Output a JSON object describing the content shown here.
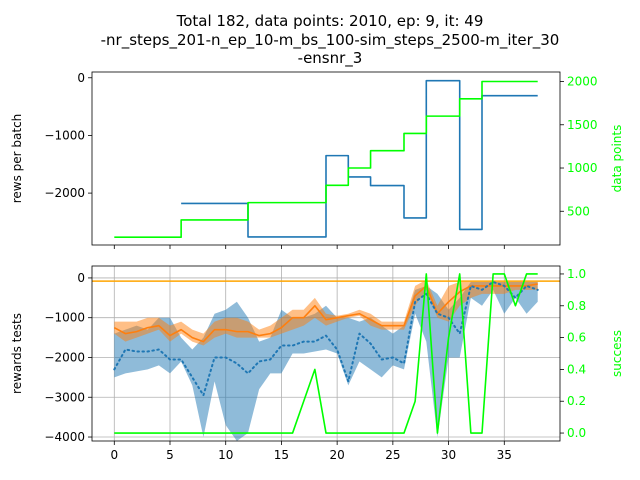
{
  "title": {
    "line1": "Total 182, data points: 2010, ep: 9, it: 49",
    "line2": "-nr_steps_201-n_ep_10-m_bs_100-sim_steps_2500-m_iter_30",
    "line3": "-ensnr_3"
  },
  "colors": {
    "blue": "#1f77b4",
    "orange": "#ff7f0e",
    "green": "#00ff00",
    "ref_line": "#ffa500",
    "grid": "#b0b0b0"
  },
  "chart_data": [
    {
      "type": "line",
      "step": true,
      "ylabel": "rews per batch",
      "ylabel_right": "data points",
      "xlim": [
        -2,
        40
      ],
      "ylim": [
        -2900,
        100
      ],
      "ylim_right": [
        110,
        2110
      ],
      "yticks": [
        0,
        -1000,
        -2000
      ],
      "yticks_right": [
        500,
        1000,
        1500,
        2000
      ],
      "grid": false,
      "series": [
        {
          "axis": "left",
          "color": "blue",
          "x": [
            6,
            12,
            19,
            21,
            23,
            26,
            28,
            31,
            33,
            38
          ],
          "y": [
            -2180,
            -2760,
            -1350,
            -1720,
            -1870,
            -2430,
            -50,
            -2630,
            -310,
            -310
          ]
        },
        {
          "axis": "right",
          "color": "green",
          "x": [
            0,
            6,
            12,
            19,
            21,
            23,
            26,
            28,
            31,
            33,
            38
          ],
          "y": [
            200,
            400,
            600,
            800,
            1000,
            1200,
            1400,
            1600,
            1800,
            2000,
            2000
          ]
        }
      ]
    },
    {
      "type": "line",
      "ylabel": "rewards tests",
      "ylabel_right": "success",
      "xlim": [
        -2,
        40
      ],
      "ylim": [
        -4100,
        300
      ],
      "ylim_right": [
        -0.05,
        1.05
      ],
      "xticks": [
        0,
        5,
        10,
        15,
        20,
        25,
        30,
        35
      ],
      "yticks": [
        0,
        -1000,
        -2000,
        -3000,
        -4000
      ],
      "yticks_right": [
        0.0,
        0.2,
        0.4,
        0.6,
        0.8,
        1.0
      ],
      "grid": true,
      "hline": -80,
      "x": [
        0,
        1,
        2,
        3,
        4,
        5,
        6,
        7,
        8,
        9,
        10,
        11,
        12,
        13,
        14,
        15,
        16,
        17,
        18,
        19,
        20,
        21,
        22,
        23,
        24,
        25,
        26,
        27,
        28,
        29,
        30,
        31,
        32,
        33,
        34,
        35,
        36,
        37,
        38
      ],
      "blue_band": {
        "color": "blue",
        "lower": [
          -2500,
          -2400,
          -2350,
          -2300,
          -2200,
          -2400,
          -2100,
          -2700,
          -4000,
          -2600,
          -3700,
          -4100,
          -3900,
          -2800,
          -2400,
          -2400,
          -1900,
          -1900,
          -1850,
          -1800,
          -1900,
          -2700,
          -2100,
          -2300,
          -2500,
          -2200,
          -2300,
          -900,
          -1600,
          -4000,
          -2000,
          -2000,
          -500,
          -700,
          -300,
          -900,
          -500,
          -900,
          -600
        ],
        "upper": [
          -1400,
          -1300,
          -1200,
          -1300,
          -1000,
          -1000,
          -1500,
          -1800,
          -1500,
          -900,
          -800,
          -600,
          -1000,
          -1600,
          -1500,
          -800,
          -1000,
          -1000,
          -900,
          -700,
          -1000,
          -1000,
          -1100,
          -1000,
          -1200,
          -1400,
          -1200,
          -300,
          -200,
          -400,
          -800,
          -500,
          -100,
          -100,
          -100,
          -100,
          -100,
          -100,
          -100
        ]
      },
      "series": [
        {
          "axis": "left",
          "color": "orange",
          "style": "solid",
          "band_lower": [
            -1400,
            -1600,
            -1500,
            -1400,
            -1300,
            -1600,
            -1400,
            -1600,
            -1700,
            -1500,
            -1400,
            -1500,
            -1500,
            -1500,
            -1500,
            -1400,
            -1300,
            -1200,
            -1000,
            -1200,
            -1100,
            -1000,
            -950,
            -1200,
            -1300,
            -1300,
            -1300,
            -700,
            -300,
            -1000,
            -1100,
            -700,
            -500,
            -400,
            -400,
            -400,
            -300,
            -300,
            -300
          ],
          "band_upper": [
            -1100,
            -1100,
            -1100,
            -1000,
            -1000,
            -1200,
            -1100,
            -1300,
            -1400,
            -1100,
            -1000,
            -1000,
            -1100,
            -1300,
            -1200,
            -1000,
            -800,
            -800,
            -500,
            -900,
            -950,
            -900,
            -800,
            -900,
            -1100,
            -1100,
            -1100,
            -200,
            -50,
            -700,
            -200,
            -100,
            -100,
            -100,
            -100,
            -100,
            -100,
            -100,
            -100
          ],
          "y": [
            -1250,
            -1400,
            -1350,
            -1250,
            -1200,
            -1450,
            -1300,
            -1500,
            -1600,
            -1300,
            -1300,
            -1350,
            -1350,
            -1450,
            -1400,
            -1250,
            -1000,
            -1000,
            -700,
            -1050,
            -1000,
            -950,
            -900,
            -1050,
            -1200,
            -1200,
            -1200,
            -450,
            -200,
            -900,
            -600,
            -350,
            -200,
            -200,
            -200,
            -200,
            -200,
            -200,
            -150
          ]
        },
        {
          "axis": "left",
          "color": "blue",
          "style": "dotted",
          "y": [
            -2300,
            -1800,
            -1850,
            -1850,
            -1800,
            -2050,
            -2050,
            -2500,
            -2950,
            -2000,
            -2000,
            -2150,
            -2400,
            -2100,
            -2050,
            -1700,
            -1700,
            -1600,
            -1600,
            -1450,
            -1800,
            -2600,
            -1400,
            -1650,
            -2050,
            -2000,
            -2150,
            -600,
            -400,
            -900,
            -1000,
            -1400,
            -200,
            -300,
            -100,
            -200,
            -500,
            -200,
            -300
          ]
        },
        {
          "axis": "right",
          "color": "green",
          "style": "solid",
          "y": [
            0,
            0,
            0,
            0,
            0,
            0,
            0,
            0,
            0,
            0,
            0,
            0,
            0,
            0,
            0,
            0,
            0,
            0.2,
            0.4,
            0,
            0,
            0,
            0,
            0,
            0,
            0,
            0,
            0.2,
            1,
            0,
            0.6,
            1,
            0,
            0,
            1,
            1,
            0.8,
            1,
            1
          ]
        }
      ]
    }
  ]
}
